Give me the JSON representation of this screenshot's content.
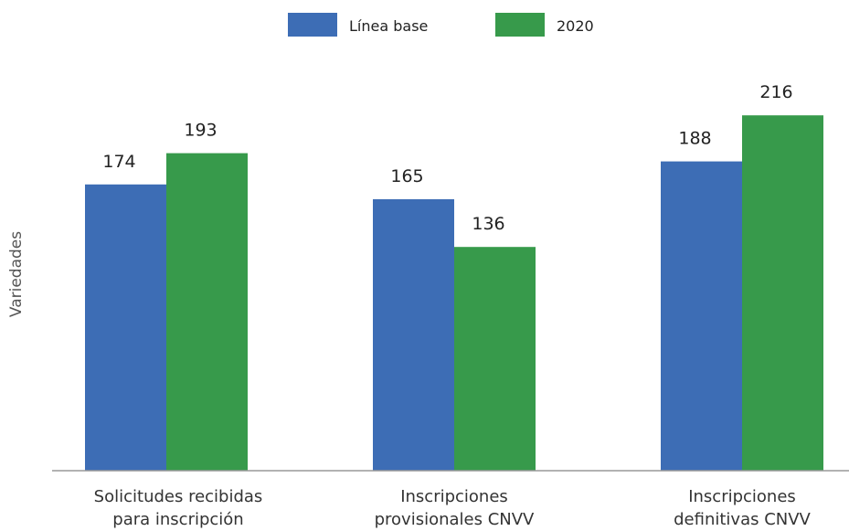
{
  "chart_data": {
    "type": "bar",
    "categories": [
      [
        "Solicitudes recibidas",
        "para inscripción"
      ],
      [
        "Inscripciones",
        "provisionales CNVV"
      ],
      [
        "Inscripciones",
        "definitivas CNVV"
      ]
    ],
    "series": [
      {
        "name": "Línea base",
        "values": [
          174,
          165,
          188
        ],
        "color": "#3d6db5"
      },
      {
        "name": "2020",
        "values": [
          193,
          136,
          216
        ],
        "color": "#379a4b"
      }
    ],
    "ylabel": "Variedades",
    "xlabel": "",
    "ylim": [
      0,
      245
    ],
    "legend_position": "top-center",
    "grid": false,
    "axis_color": "#999999"
  }
}
